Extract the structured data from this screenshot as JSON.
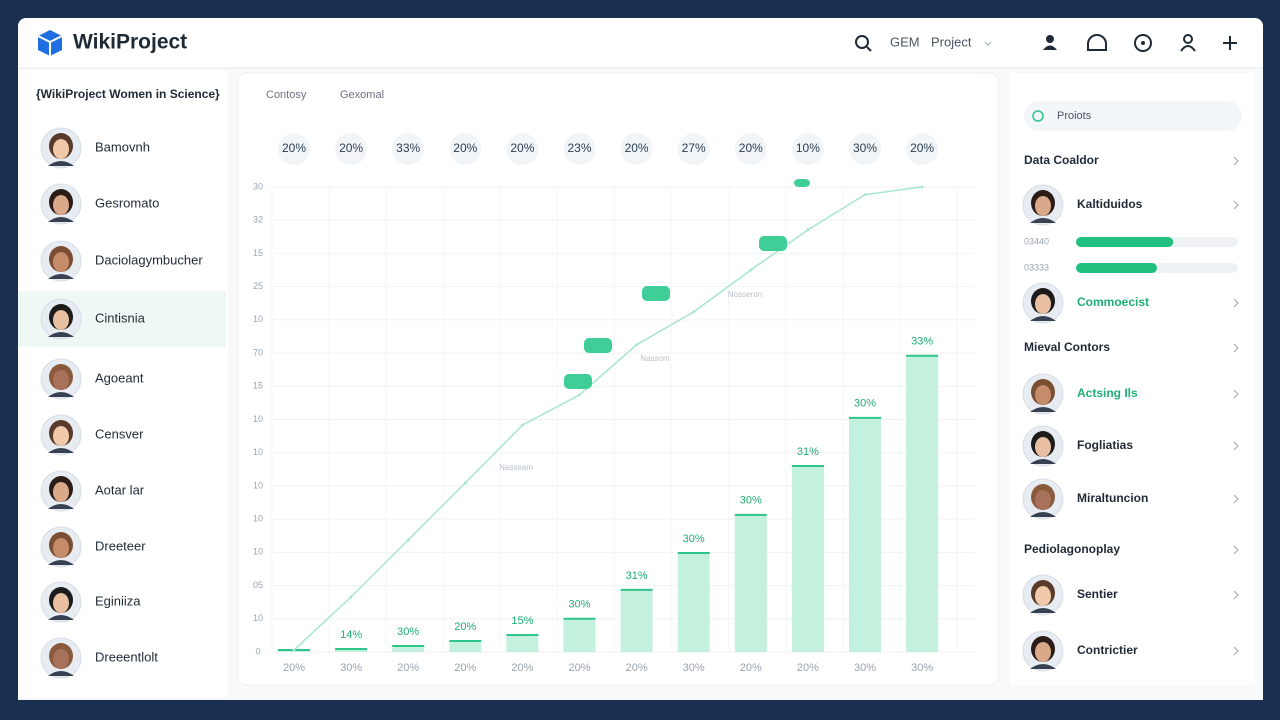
{
  "header": {
    "logo": "WikiProject",
    "nav": [
      "GEM",
      "Project"
    ]
  },
  "sidebar": {
    "title": "{WikiProject Women in Science}",
    "people": [
      "Bamovnh",
      "Gesromato",
      "Daciolagymbucher",
      "Cintisnia",
      "Agoeant",
      "Censver",
      "Aotar lar",
      "Dreeteer",
      "Eginiiza",
      "Dreeentlolt"
    ],
    "selected": 3
  },
  "tabs": [
    "Contosy",
    "Gexomal"
  ],
  "chart_data": {
    "type": "bar",
    "top_labels": [
      "20%",
      "20%",
      "33%",
      "20%",
      "20%",
      "23%",
      "20%",
      "27%",
      "20%",
      "10%",
      "30%",
      "20%"
    ],
    "categories": [
      "20%",
      "30%",
      "20%",
      "20%",
      "20%",
      "20%",
      "20%",
      "30%",
      "20%",
      "20%",
      "30%",
      "30%"
    ],
    "values": [
      0.06,
      0.09,
      0.18,
      0.33,
      0.51,
      1.0,
      1.87,
      2.98,
      4.13,
      5.6,
      7.05,
      8.92
    ],
    "bar_labels": [
      null,
      "14%",
      "30%",
      "20%",
      "15%",
      "30%",
      "31%",
      "30%",
      "30%",
      "31%",
      "30%",
      "33%"
    ],
    "color": "#c4f0de",
    "cap_color": "#2ec48a",
    "line": {
      "values": [
        0.06,
        1.66,
        3.37,
        5.09,
        6.83,
        7.74,
        9.25,
        10.24,
        11.5,
        12.71,
        13.77,
        14.0
      ],
      "color": "#a6e6cc"
    },
    "annotations": [
      "Nasseam",
      "Nassom",
      "Nosseron"
    ],
    "ylim": [
      0,
      14.2
    ],
    "yticks": [
      0,
      {
        "value": 1,
        "label": "10"
      },
      {
        "value": 2,
        "label": "05"
      },
      {
        "value": 3,
        "label": "10"
      },
      {
        "value": 4,
        "label": "10"
      },
      {
        "value": 5,
        "label": "10"
      },
      {
        "value": 6,
        "label": "10"
      },
      {
        "value": 7,
        "label": "10"
      },
      {
        "value": 8,
        "label": "15"
      },
      {
        "value": 9,
        "label": "70"
      },
      {
        "value": 10,
        "label": "10"
      },
      {
        "value": 11,
        "label": "25"
      },
      {
        "value": 12,
        "label": "15"
      },
      {
        "value": 13,
        "label": "32"
      },
      {
        "value": 14,
        "label": "30"
      }
    ],
    "grid": true
  },
  "right": {
    "search": "Proiots",
    "section": "Data Coaldor",
    "person1": {
      "name": "Kaltiduidos"
    },
    "progress": {
      "labels": [
        "03440",
        "03333"
      ],
      "values": [
        60,
        50
      ],
      "lim": [
        0,
        100
      ],
      "color": "#22c07f"
    },
    "person2": {
      "name": "Commoecist",
      "color": "#1fae74"
    },
    "sections": [
      {
        "title": "Mieval Contors",
        "people": [
          {
            "name": "Actsing Ils",
            "color": "#1fae74"
          },
          {
            "name": "Fogliatias"
          },
          {
            "name": "Miraltuncion"
          }
        ]
      },
      {
        "title": "Pediolagonoplay",
        "people": [
          {
            "name": "Sentier"
          },
          {
            "name": "Contrictier"
          }
        ]
      }
    ]
  }
}
